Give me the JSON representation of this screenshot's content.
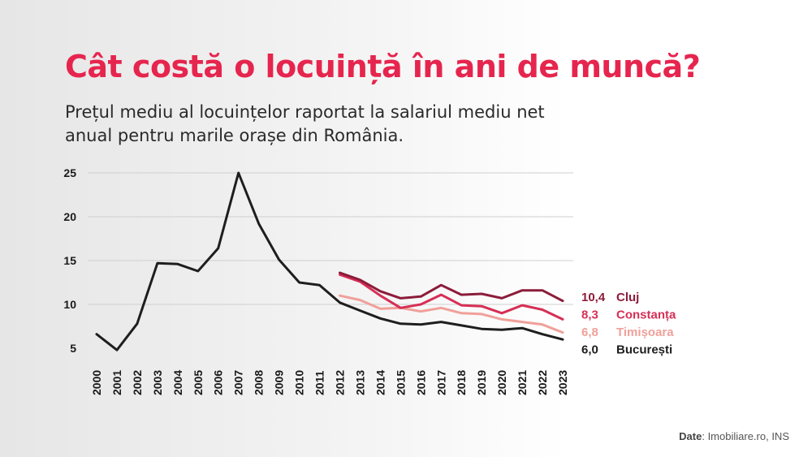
{
  "header": {
    "title": "Cât costă o locuință în ani de muncă?",
    "subtitle": "Prețul mediu al locuințelor raportat la salariul mediu net anual pentru marile orașe din România."
  },
  "source": {
    "label": "Date",
    "text": ": Imobiliare.ro, INS"
  },
  "colors": {
    "title": "#e6254e",
    "grid": "#cfcfcf",
    "axis_text": "#1a1a1a"
  },
  "chart_data": {
    "type": "line",
    "title": "Cât costă o locuință în ani de muncă?",
    "xlabel": "",
    "ylabel": "",
    "ylim": [
      5,
      25
    ],
    "yticks": [
      5,
      10,
      15,
      20,
      25
    ],
    "grid": true,
    "x": [
      "2000",
      "2001",
      "2002",
      "2003",
      "2004",
      "2005",
      "2006",
      "2007",
      "2008",
      "2009",
      "2010",
      "2011",
      "2012",
      "2013",
      "2014",
      "2015",
      "2016",
      "2017",
      "2018",
      "2019",
      "2020",
      "2021",
      "2022",
      "2023"
    ],
    "series": [
      {
        "name": "București",
        "color": "#1e1e1e",
        "end_label": "6,0",
        "values": [
          6.6,
          4.8,
          7.8,
          14.7,
          14.6,
          13.8,
          16.4,
          25.0,
          19.2,
          15.1,
          12.5,
          12.2,
          10.2,
          9.3,
          8.4,
          7.8,
          7.7,
          8.0,
          7.6,
          7.2,
          7.1,
          7.3,
          6.6,
          6.0
        ]
      },
      {
        "name": "Cluj",
        "color": "#8c1c3a",
        "end_label": "10,4",
        "values": [
          null,
          null,
          null,
          null,
          null,
          null,
          null,
          null,
          null,
          null,
          null,
          null,
          13.6,
          12.8,
          11.5,
          10.7,
          10.9,
          12.2,
          11.1,
          11.2,
          10.7,
          11.6,
          11.6,
          10.4
        ]
      },
      {
        "name": "Constanța",
        "color": "#d62f55",
        "end_label": "8,3",
        "values": [
          null,
          null,
          null,
          null,
          null,
          null,
          null,
          null,
          null,
          null,
          null,
          null,
          13.4,
          12.6,
          11.0,
          9.6,
          10.0,
          11.1,
          9.9,
          9.8,
          9.0,
          9.9,
          9.4,
          8.3
        ]
      },
      {
        "name": "Timișoara",
        "color": "#f0a09a",
        "end_label": "6,8",
        "values": [
          null,
          null,
          null,
          null,
          null,
          null,
          null,
          null,
          null,
          null,
          null,
          null,
          11.0,
          10.5,
          9.5,
          9.6,
          9.2,
          9.6,
          9.0,
          8.9,
          8.3,
          8.0,
          7.7,
          6.8
        ]
      }
    ],
    "legend_order": [
      "Cluj",
      "Constanța",
      "Timișoara",
      "București"
    ]
  }
}
